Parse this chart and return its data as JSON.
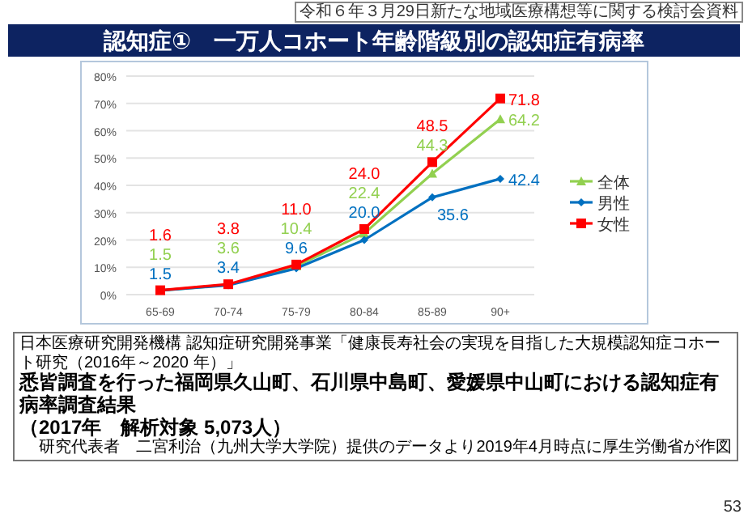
{
  "chart_data": {
    "type": "line",
    "title": "認知症①　一万人コホート年齢階級別の認知症有病率",
    "categories": [
      "65-69",
      "70-74",
      "75-79",
      "80-84",
      "85-89",
      "90+"
    ],
    "series": [
      {
        "name": "全体",
        "color": "#92d050",
        "marker": "triangle",
        "values": [
          1.5,
          3.6,
          10.4,
          22.4,
          44.3,
          64.2
        ],
        "value_labels": [
          "1.5",
          "3.6",
          "10.4",
          "22.4",
          "44.3",
          "64.2"
        ]
      },
      {
        "name": "男性",
        "color": "#0070c0",
        "marker": "diamond",
        "values": [
          1.5,
          3.4,
          9.6,
          20.0,
          35.6,
          42.4
        ],
        "value_labels": [
          "1.5",
          "3.4",
          "9.6",
          "20.0",
          "35.6",
          "42.4"
        ]
      },
      {
        "name": "女性",
        "color": "#ff0000",
        "marker": "square",
        "values": [
          1.6,
          3.8,
          11.0,
          24.0,
          48.5,
          71.8
        ],
        "value_labels": [
          "1.6",
          "3.8",
          "11.0",
          "24.0",
          "48.5",
          "71.8"
        ]
      }
    ],
    "ylim": [
      0,
      80
    ],
    "yticks": [
      {
        "value": 0,
        "label": "0%"
      },
      {
        "value": 10,
        "label": "10%"
      },
      {
        "value": 20,
        "label": "20%"
      },
      {
        "value": 30,
        "label": "30%"
      },
      {
        "value": 40,
        "label": "40%"
      },
      {
        "value": 50,
        "label": "50%"
      },
      {
        "value": 60,
        "label": "60%"
      },
      {
        "value": 70,
        "label": "70%"
      },
      {
        "value": 80,
        "label": "80%"
      }
    ],
    "grid": "y",
    "legend": "right",
    "annotations": [
      "令和６年３月29日新たな地域医療構想等に関する検討会資料",
      "日本医療研究開発機構 認知症研究開発事業「健康長寿社会の実現を目指した大規模認知症コホート研究（2016年～2020 年）」",
      "悉皆調査を行った福岡県久山町、石川県中島町、愛媛県中山町における認知症有病率調査結果",
      "（2017年　解析対象 5,073人）",
      "研究代表者　二宮利治（九州大学大学院）提供のデータより2019年4月時点に厚生労働省が作図",
      "53"
    ]
  }
}
